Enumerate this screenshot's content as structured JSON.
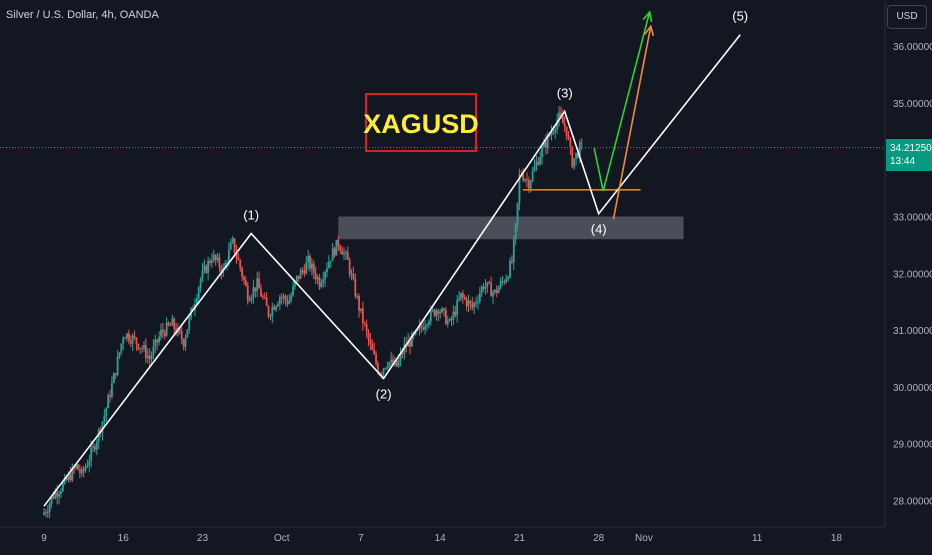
{
  "symbol": {
    "title": "Silver / U.S. Dollar, 4h, OANDA"
  },
  "currency": {
    "label": "USD"
  },
  "last_price": {
    "value": "34.21250",
    "countdown": "13:44",
    "price": 34.2125
  },
  "colors": {
    "background": "#131722",
    "up_candle": "#26a69a",
    "down_candle": "#ef5350",
    "wave_line": "#ffffff",
    "support_zone": "#787b86",
    "support_line": "#f57c00",
    "green_arrow": "#2ed12e",
    "orange_arrow": "#f08a3c",
    "label_box_border": "#e01e1e",
    "label_text": "#ffeb3b",
    "price_line": "#089981"
  },
  "chart_data": {
    "type": "candlestick",
    "title": "Silver / U.S. Dollar, 4h, OANDA",
    "xlabel": "",
    "ylabel": "",
    "ylim": [
      27.7,
      36.45
    ],
    "y_ticks": [
      "28.00000",
      "29.00000",
      "30.00000",
      "31.00000",
      "32.00000",
      "33.00000",
      "35.00000",
      "36.00000"
    ],
    "y_tick_values": [
      28,
      29,
      30,
      31,
      32,
      33,
      35,
      36
    ],
    "x_ticks": [
      "9",
      "16",
      "23",
      "Oct",
      "7",
      "14",
      "21",
      "28",
      "Nov",
      "11",
      "18"
    ],
    "x_tick_days": [
      9,
      16,
      23,
      30,
      37,
      44,
      51,
      58,
      62,
      72,
      79
    ],
    "day_axis_note_hidden": true,
    "price_path": [
      [
        9.0,
        27.75
      ],
      [
        9.4,
        27.85
      ],
      [
        10.0,
        28.1
      ],
      [
        11.0,
        28.3
      ],
      [
        12.0,
        28.6
      ],
      [
        12.5,
        28.45
      ],
      [
        13.5,
        28.9
      ],
      [
        14.5,
        29.5
      ],
      [
        15.5,
        30.3
      ],
      [
        16.2,
        30.95
      ],
      [
        17.0,
        30.85
      ],
      [
        17.8,
        30.7
      ],
      [
        18.5,
        30.5
      ],
      [
        19.5,
        30.95
      ],
      [
        20.5,
        31.1
      ],
      [
        21.5,
        30.8
      ],
      [
        22.3,
        31.4
      ],
      [
        23.0,
        31.9
      ],
      [
        24.0,
        32.3
      ],
      [
        25.0,
        32.05
      ],
      [
        25.8,
        32.55
      ],
      [
        26.5,
        32.1
      ],
      [
        27.2,
        31.6
      ],
      [
        28.0,
        31.8
      ],
      [
        29.0,
        31.3
      ],
      [
        30.0,
        31.6
      ],
      [
        30.8,
        31.5
      ],
      [
        31.5,
        31.9
      ],
      [
        32.5,
        32.2
      ],
      [
        33.5,
        31.85
      ],
      [
        34.5,
        32.3
      ],
      [
        35.2,
        32.55
      ],
      [
        36.0,
        32.2
      ],
      [
        37.0,
        31.4
      ],
      [
        38.0,
        30.7
      ],
      [
        38.8,
        30.25
      ],
      [
        39.5,
        30.45
      ],
      [
        40.3,
        30.35
      ],
      [
        41.0,
        30.7
      ],
      [
        42.0,
        30.9
      ],
      [
        43.0,
        31.2
      ],
      [
        44.0,
        31.4
      ],
      [
        45.0,
        31.1
      ],
      [
        46.0,
        31.6
      ],
      [
        47.0,
        31.4
      ],
      [
        48.0,
        31.8
      ],
      [
        49.0,
        31.65
      ],
      [
        50.0,
        31.95
      ],
      [
        50.5,
        32.2
      ],
      [
        50.9,
        32.9
      ],
      [
        51.2,
        33.8
      ],
      [
        52.0,
        33.6
      ],
      [
        53.0,
        34.1
      ],
      [
        54.0,
        34.5
      ],
      [
        54.6,
        34.75
      ],
      [
        55.3,
        34.55
      ],
      [
        55.8,
        33.95
      ],
      [
        56.5,
        34.2
      ]
    ],
    "wave_labels": [
      {
        "label": "(1)",
        "day": 27.3,
        "price": 32.7
      },
      {
        "label": "(2)",
        "day": 39.0,
        "price": 30.15
      },
      {
        "label": "(3)",
        "day": 55.0,
        "price": 34.85
      },
      {
        "label": "(4)",
        "day": 58.0,
        "price": 33.05
      },
      {
        "label": "(5)",
        "day": 70.5,
        "price": 36.2
      }
    ],
    "wave_path": [
      [
        9.0,
        27.9
      ],
      [
        27.3,
        32.7
      ],
      [
        39.0,
        30.15
      ],
      [
        55.0,
        34.85
      ],
      [
        58.0,
        33.05
      ],
      [
        70.5,
        36.2
      ]
    ],
    "support_zone": {
      "from_day": 35.0,
      "to_day": 65.5,
      "low": 32.6,
      "high": 33.0
    },
    "support_line": {
      "from_day": 51.3,
      "to_day": 61.7,
      "price": 33.47
    },
    "green_arrow": [
      [
        57.6,
        34.2
      ],
      [
        58.4,
        33.45
      ],
      [
        62.5,
        36.6
      ]
    ],
    "orange_arrow": [
      [
        59.3,
        32.95
      ],
      [
        62.6,
        36.35
      ]
    ],
    "annotation": "XAGUSD",
    "last_price": 34.2125
  }
}
